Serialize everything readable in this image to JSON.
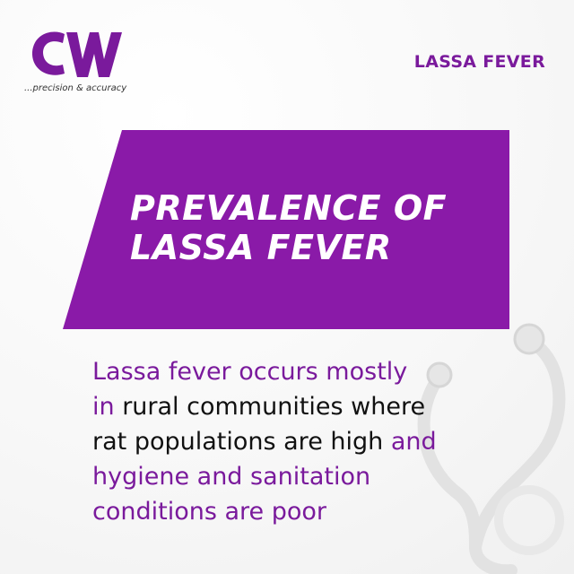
{
  "logo": {
    "letters": "CW",
    "tagline": "...precision & accuracy",
    "color": "#7a1a9c"
  },
  "header": {
    "topic_label": "LASSA FEVER"
  },
  "banner": {
    "title_line1": "PREVALENCE OF",
    "title_line2": "LASSA FEVER",
    "color": "#8a1aa8"
  },
  "body": {
    "line1": "Lassa fever occurs mostly",
    "line2_purple": "in ",
    "line2_dark": "rural communities where",
    "line3_dark": "rat populations are high ",
    "line3_purple": "and",
    "line4": "hygiene and sanitation",
    "line5": "conditions are poor"
  },
  "decoration": {
    "icon": "stethoscope-icon"
  }
}
